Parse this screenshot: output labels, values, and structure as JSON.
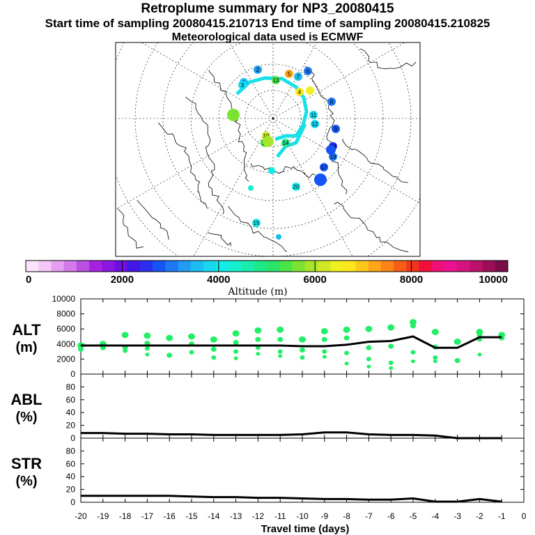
{
  "header": {
    "title": "Retroplume summary for NP3_20080415",
    "sampling_line": "Start time of sampling 20080415.210713     End time of sampling 20080415.210825",
    "met_line": "Meteorological data used is ECMWF"
  },
  "colorbar": {
    "label": "Altitude (m)",
    "ticks": [
      "0",
      "2000",
      "4000",
      "6000",
      "8000",
      "10000"
    ],
    "stops": [
      "#fbe4fb",
      "#f3c8f5",
      "#e49ff0",
      "#d27ae9",
      "#bb4fe0",
      "#a722df",
      "#8a16df",
      "#6e10e2",
      "#4318e6",
      "#2a2ef0",
      "#1654f5",
      "#1d78f3",
      "#219cf2",
      "#1cbcf0",
      "#17d8ef",
      "#13ebe8",
      "#14f0cf",
      "#18ecaa",
      "#1ee88a",
      "#2ae46a",
      "#48e448",
      "#7ce431",
      "#a7e52a",
      "#cfe824",
      "#eef020",
      "#fbe71c",
      "#fcc81a",
      "#fca618",
      "#fa8417",
      "#f65e18",
      "#ef351c",
      "#f0103a",
      "#ef1075",
      "#e81293",
      "#d5147f",
      "#bb1269",
      "#9c0f58",
      "#7a0c47"
    ]
  },
  "map": {
    "markers": [
      {
        "label": "1"
      },
      {
        "label": "2"
      },
      {
        "label": "3"
      },
      {
        "label": "4"
      },
      {
        "label": "5"
      },
      {
        "label": "6"
      },
      {
        "label": "7"
      },
      {
        "label": "8"
      },
      {
        "label": "9"
      },
      {
        "label": "10"
      },
      {
        "label": "11"
      },
      {
        "label": "12"
      },
      {
        "label": "13"
      },
      {
        "label": "14"
      },
      {
        "label": "15"
      },
      {
        "label": "16"
      },
      {
        "label": "17"
      },
      {
        "label": "18"
      },
      {
        "label": "19"
      },
      {
        "label": "20"
      }
    ]
  },
  "chart_data": [
    {
      "type": "line",
      "panel": "ALT",
      "ylabel": [
        "ALT",
        "(m)"
      ],
      "yticks": [
        "0",
        "2000",
        "4000",
        "6000",
        "8000",
        "10000"
      ],
      "ylim": [
        0,
        10000
      ],
      "x": [
        -20,
        -19,
        -18,
        -17,
        -16,
        -15,
        -14,
        -13,
        -12,
        -11,
        -10,
        -9,
        -8,
        -7,
        -6,
        -5,
        -4,
        -3,
        -2,
        -1
      ],
      "values": [
        3800,
        3800,
        3800,
        3800,
        3800,
        3800,
        3800,
        3800,
        3800,
        3800,
        3700,
        3700,
        3900,
        4300,
        4400,
        5000,
        3500,
        3500,
        4900,
        4900
      ],
      "cluster_points": [
        {
          "x": -20,
          "y": [
            3800,
            3300
          ]
        },
        {
          "x": -19,
          "y": [
            4000,
            3500
          ]
        },
        {
          "x": -18,
          "y": [
            5200,
            3600,
            3100
          ]
        },
        {
          "x": -17,
          "y": [
            5100,
            4100,
            3400,
            2600
          ]
        },
        {
          "x": -16,
          "y": [
            4800,
            2500
          ]
        },
        {
          "x": -15,
          "y": [
            5000,
            4000,
            2900
          ]
        },
        {
          "x": -14,
          "y": [
            4600,
            3300,
            2200
          ]
        },
        {
          "x": -13,
          "y": [
            5400,
            4200,
            3000,
            2100
          ]
        },
        {
          "x": -12,
          "y": [
            5800,
            4600,
            3500,
            2700
          ]
        },
        {
          "x": -11,
          "y": [
            5900,
            4600,
            3000,
            2400
          ]
        },
        {
          "x": -10,
          "y": [
            4600,
            3200,
            2200
          ]
        },
        {
          "x": -9,
          "y": [
            5700,
            4600,
            3000,
            2300
          ]
        },
        {
          "x": -8,
          "y": [
            5900,
            4800,
            2800,
            1400
          ]
        },
        {
          "x": -7,
          "y": [
            6000,
            3500,
            2000,
            1000
          ]
        },
        {
          "x": -6,
          "y": [
            6200,
            3700,
            1500,
            800
          ]
        },
        {
          "x": -5,
          "y": [
            6900,
            6400,
            2900,
            1700
          ]
        },
        {
          "x": -4,
          "y": [
            5600,
            3600,
            2200,
            1700
          ]
        },
        {
          "x": -3,
          "y": [
            4300,
            1800
          ]
        },
        {
          "x": -2,
          "y": [
            5600,
            5100,
            4600,
            2600
          ]
        },
        {
          "x": -1,
          "y": [
            5200,
            4800
          ]
        }
      ]
    },
    {
      "type": "line",
      "panel": "ABL",
      "ylabel": [
        "ABL",
        "(%)"
      ],
      "yticks": [
        "0",
        "20",
        "40",
        "60",
        "80"
      ],
      "ylim": [
        0,
        100
      ],
      "x": [
        -20,
        -19,
        -18,
        -17,
        -16,
        -15,
        -14,
        -13,
        -12,
        -11,
        -10,
        -9,
        -8,
        -7,
        -6,
        -5,
        -4,
        -3,
        -2,
        -1
      ],
      "values": [
        8,
        8,
        7,
        7,
        6,
        6,
        5,
        5,
        5,
        5,
        6,
        9,
        9,
        6,
        5,
        5,
        4,
        0,
        0,
        0
      ]
    },
    {
      "type": "line",
      "panel": "STR",
      "ylabel": [
        "STR",
        "(%)"
      ],
      "yticks": [
        "0",
        "20",
        "40",
        "60",
        "80"
      ],
      "ylim": [
        0,
        100
      ],
      "x": [
        -20,
        -19,
        -18,
        -17,
        -16,
        -15,
        -14,
        -13,
        -12,
        -11,
        -10,
        -9,
        -8,
        -7,
        -6,
        -5,
        -4,
        -3,
        -2,
        -1
      ],
      "values": [
        10,
        10,
        10,
        10,
        10,
        9,
        8,
        8,
        7,
        7,
        6,
        5,
        5,
        4,
        4,
        6,
        1,
        1,
        5,
        1
      ]
    },
    {
      "type": "axis",
      "xlabel": "Travel time (days)",
      "xticks": [
        "-20",
        "-19",
        "-18",
        "-17",
        "-16",
        "-15",
        "-14",
        "-13",
        "-12",
        "-11",
        "-10",
        "-9",
        "-8",
        "-7",
        "-6",
        "-5",
        "-4",
        "-3",
        "-2",
        "-1",
        "0"
      ],
      "xlim": [
        -20,
        0
      ]
    }
  ]
}
